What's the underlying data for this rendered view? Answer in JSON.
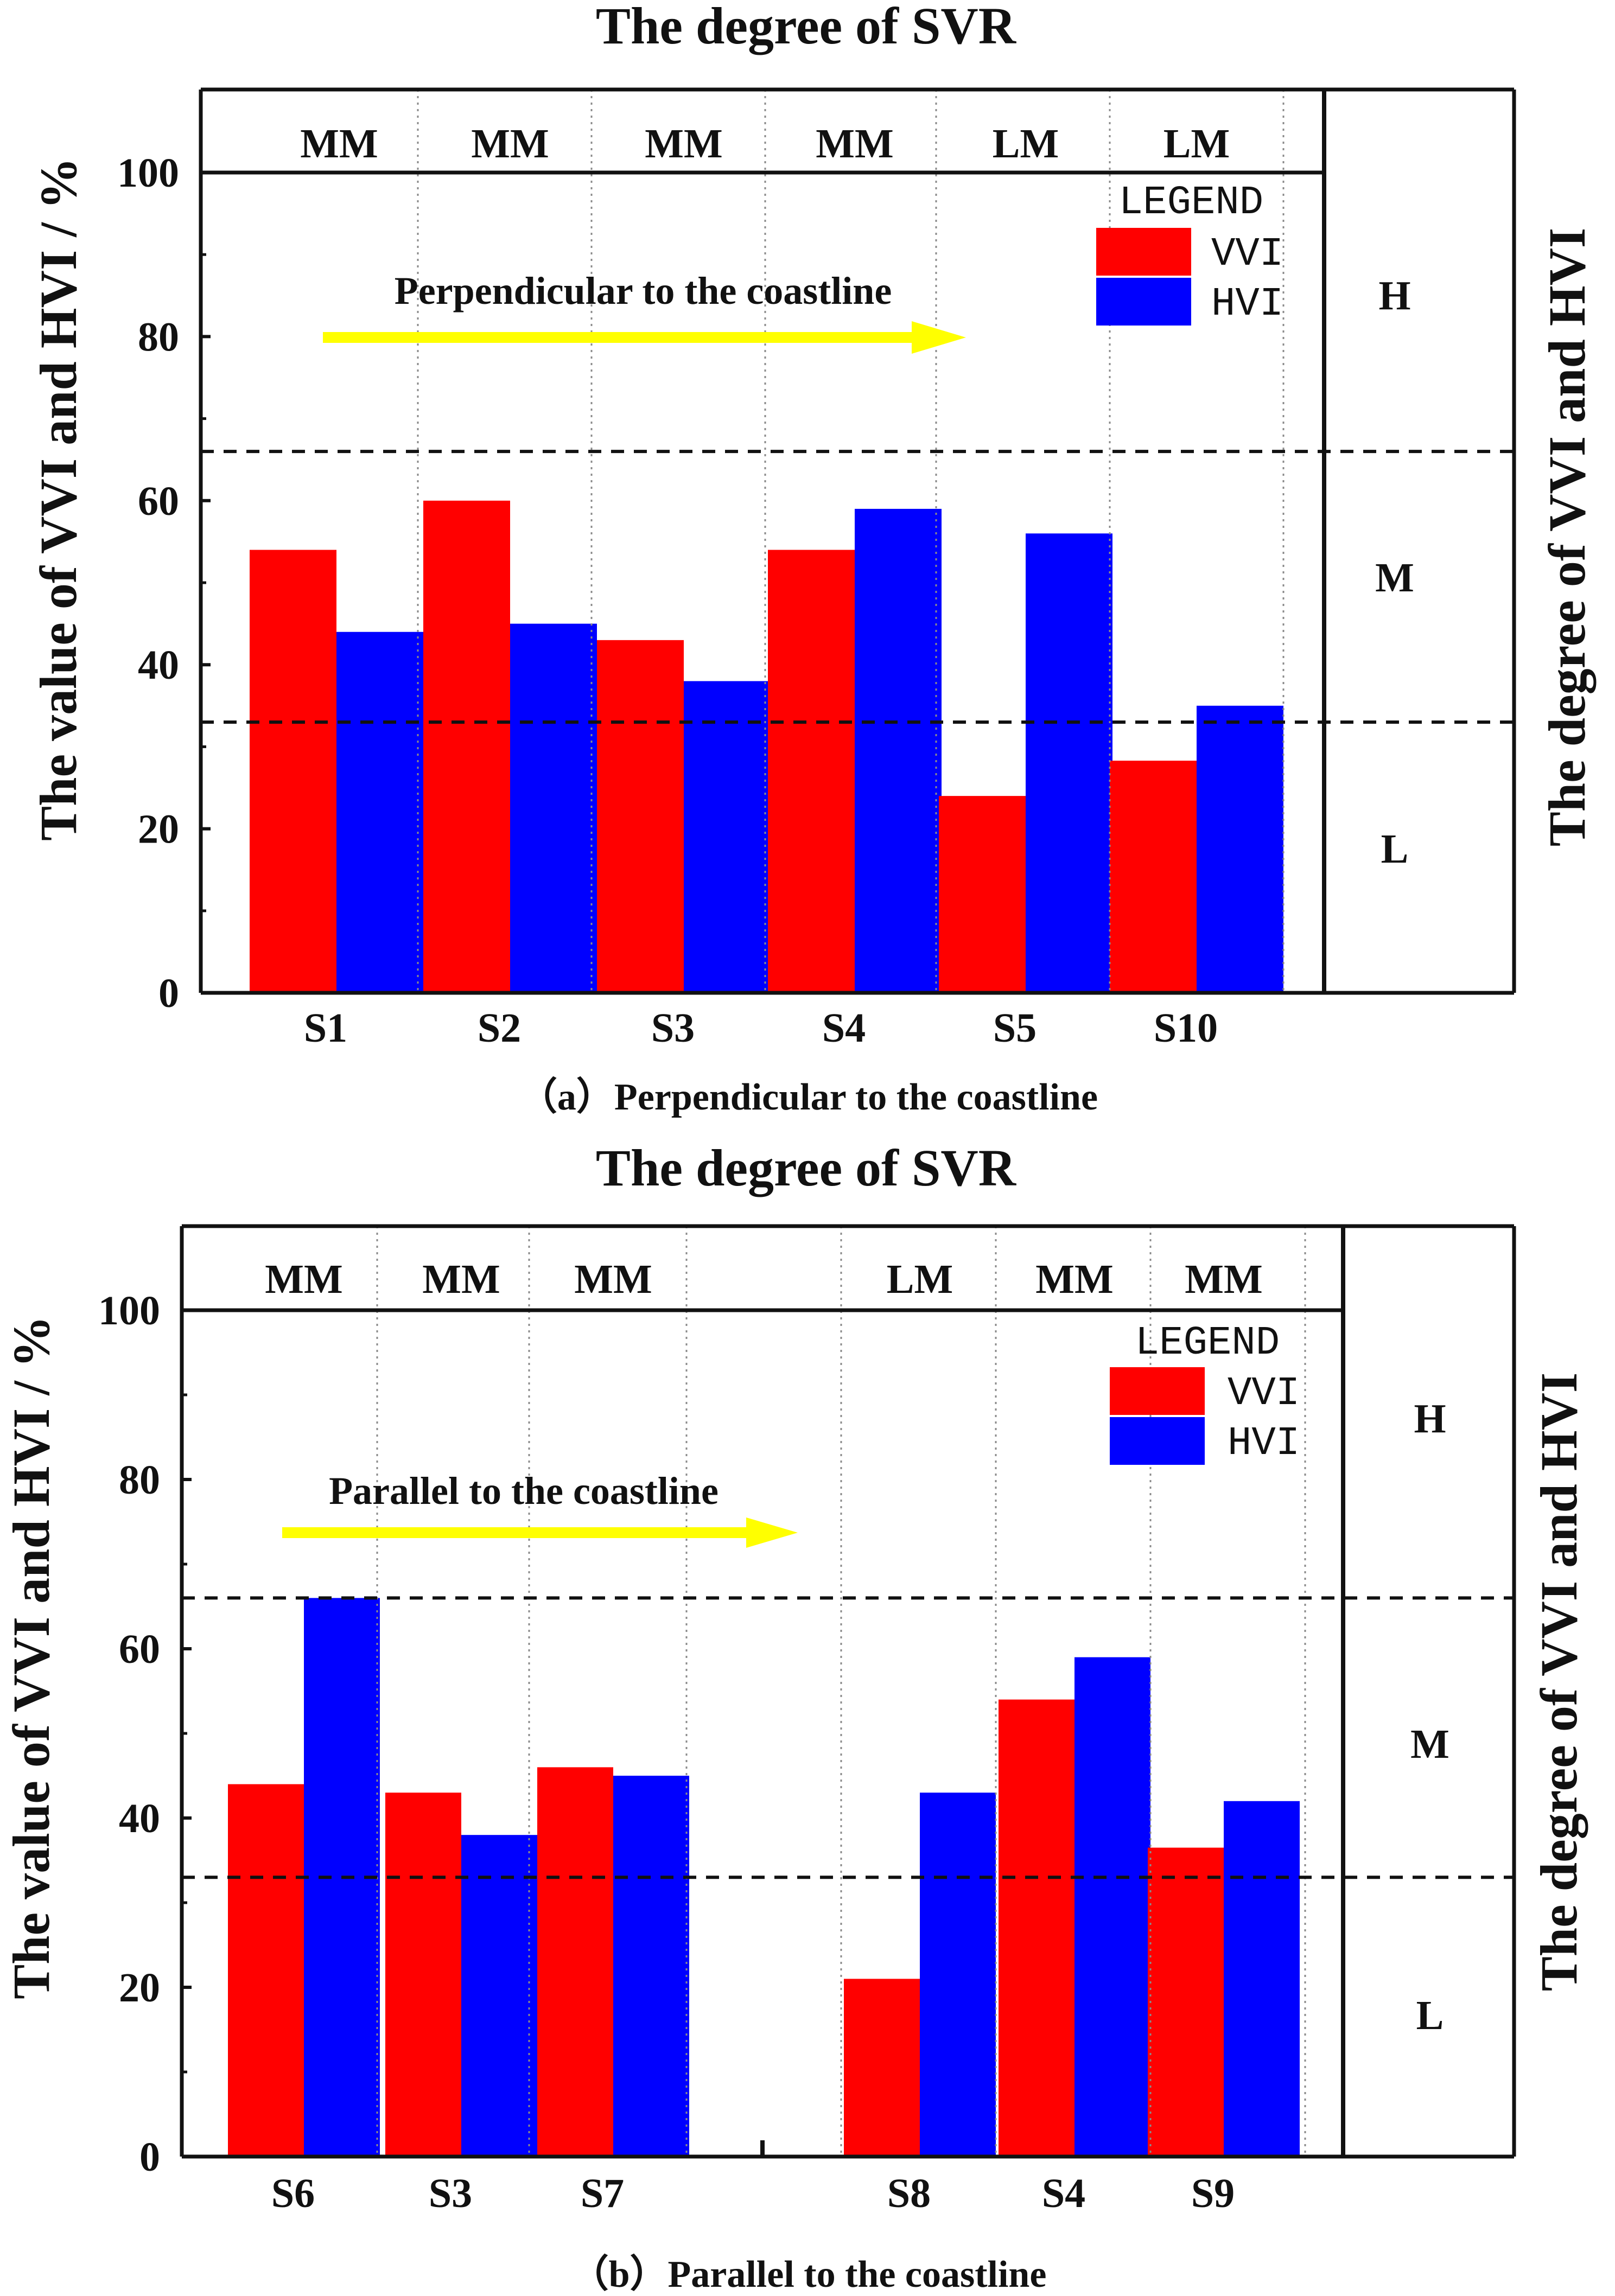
{
  "colors": {
    "vvi": "#ff0000",
    "hvi": "#0000ff",
    "arrow": "#ffff00",
    "axis": "#111111",
    "background": "#ffffff"
  },
  "chart_data": [
    {
      "type": "bar",
      "title": "The degree of SVR",
      "caption": "（a）Perpendicular to the coastline",
      "ylabel": "The value of VVI and HVI / %",
      "ylabel_right": "The degree of VVI and HVI",
      "ylim": [
        0,
        110
      ],
      "yticks": [
        0,
        20,
        40,
        60,
        80,
        100
      ],
      "categories": [
        "S1",
        "S2",
        "S3",
        "S4",
        "S5",
        "S10"
      ],
      "series": [
        {
          "name": "VVI",
          "values": [
            54,
            60,
            43,
            54,
            24,
            28.3
          ]
        },
        {
          "name": "HVI",
          "values": [
            44,
            45,
            38,
            59,
            56,
            35
          ]
        }
      ],
      "svr_degree": [
        "MM",
        "MM",
        "MM",
        "MM",
        "LM",
        "LM"
      ],
      "thresholds": [
        33,
        66
      ],
      "levels": [
        "H",
        "M",
        "L"
      ],
      "annotation": "Perpendicular to the coastline",
      "legend": {
        "title": "LEGEND",
        "items": [
          "VVI",
          "HVI"
        ],
        "position": "top-right"
      }
    },
    {
      "type": "bar",
      "title": "The degree of SVR",
      "caption": "（b）Parallel to the coastline",
      "ylabel": "The value of VVI and HVI / %",
      "ylabel_right": "The degree of VVI and HVI",
      "ylim": [
        0,
        110
      ],
      "yticks": [
        0,
        20,
        40,
        60,
        80,
        100
      ],
      "categories": [
        "S6",
        "S3",
        "S7",
        "",
        "S8",
        "S4",
        "S9"
      ],
      "series": [
        {
          "name": "VVI",
          "values": [
            44,
            43,
            46,
            null,
            21,
            54,
            36.5
          ]
        },
        {
          "name": "HVI",
          "values": [
            66,
            38,
            45,
            null,
            43,
            59,
            42
          ]
        }
      ],
      "svr_degree": [
        "MM",
        "MM",
        "MM",
        "",
        "LM",
        "MM",
        "MM"
      ],
      "thresholds": [
        33,
        66
      ],
      "levels": [
        "H",
        "M",
        "L"
      ],
      "annotation": "Parallel to the coastline",
      "legend": {
        "title": "LEGEND",
        "items": [
          "VVI",
          "HVI"
        ],
        "position": "top-right"
      }
    }
  ]
}
